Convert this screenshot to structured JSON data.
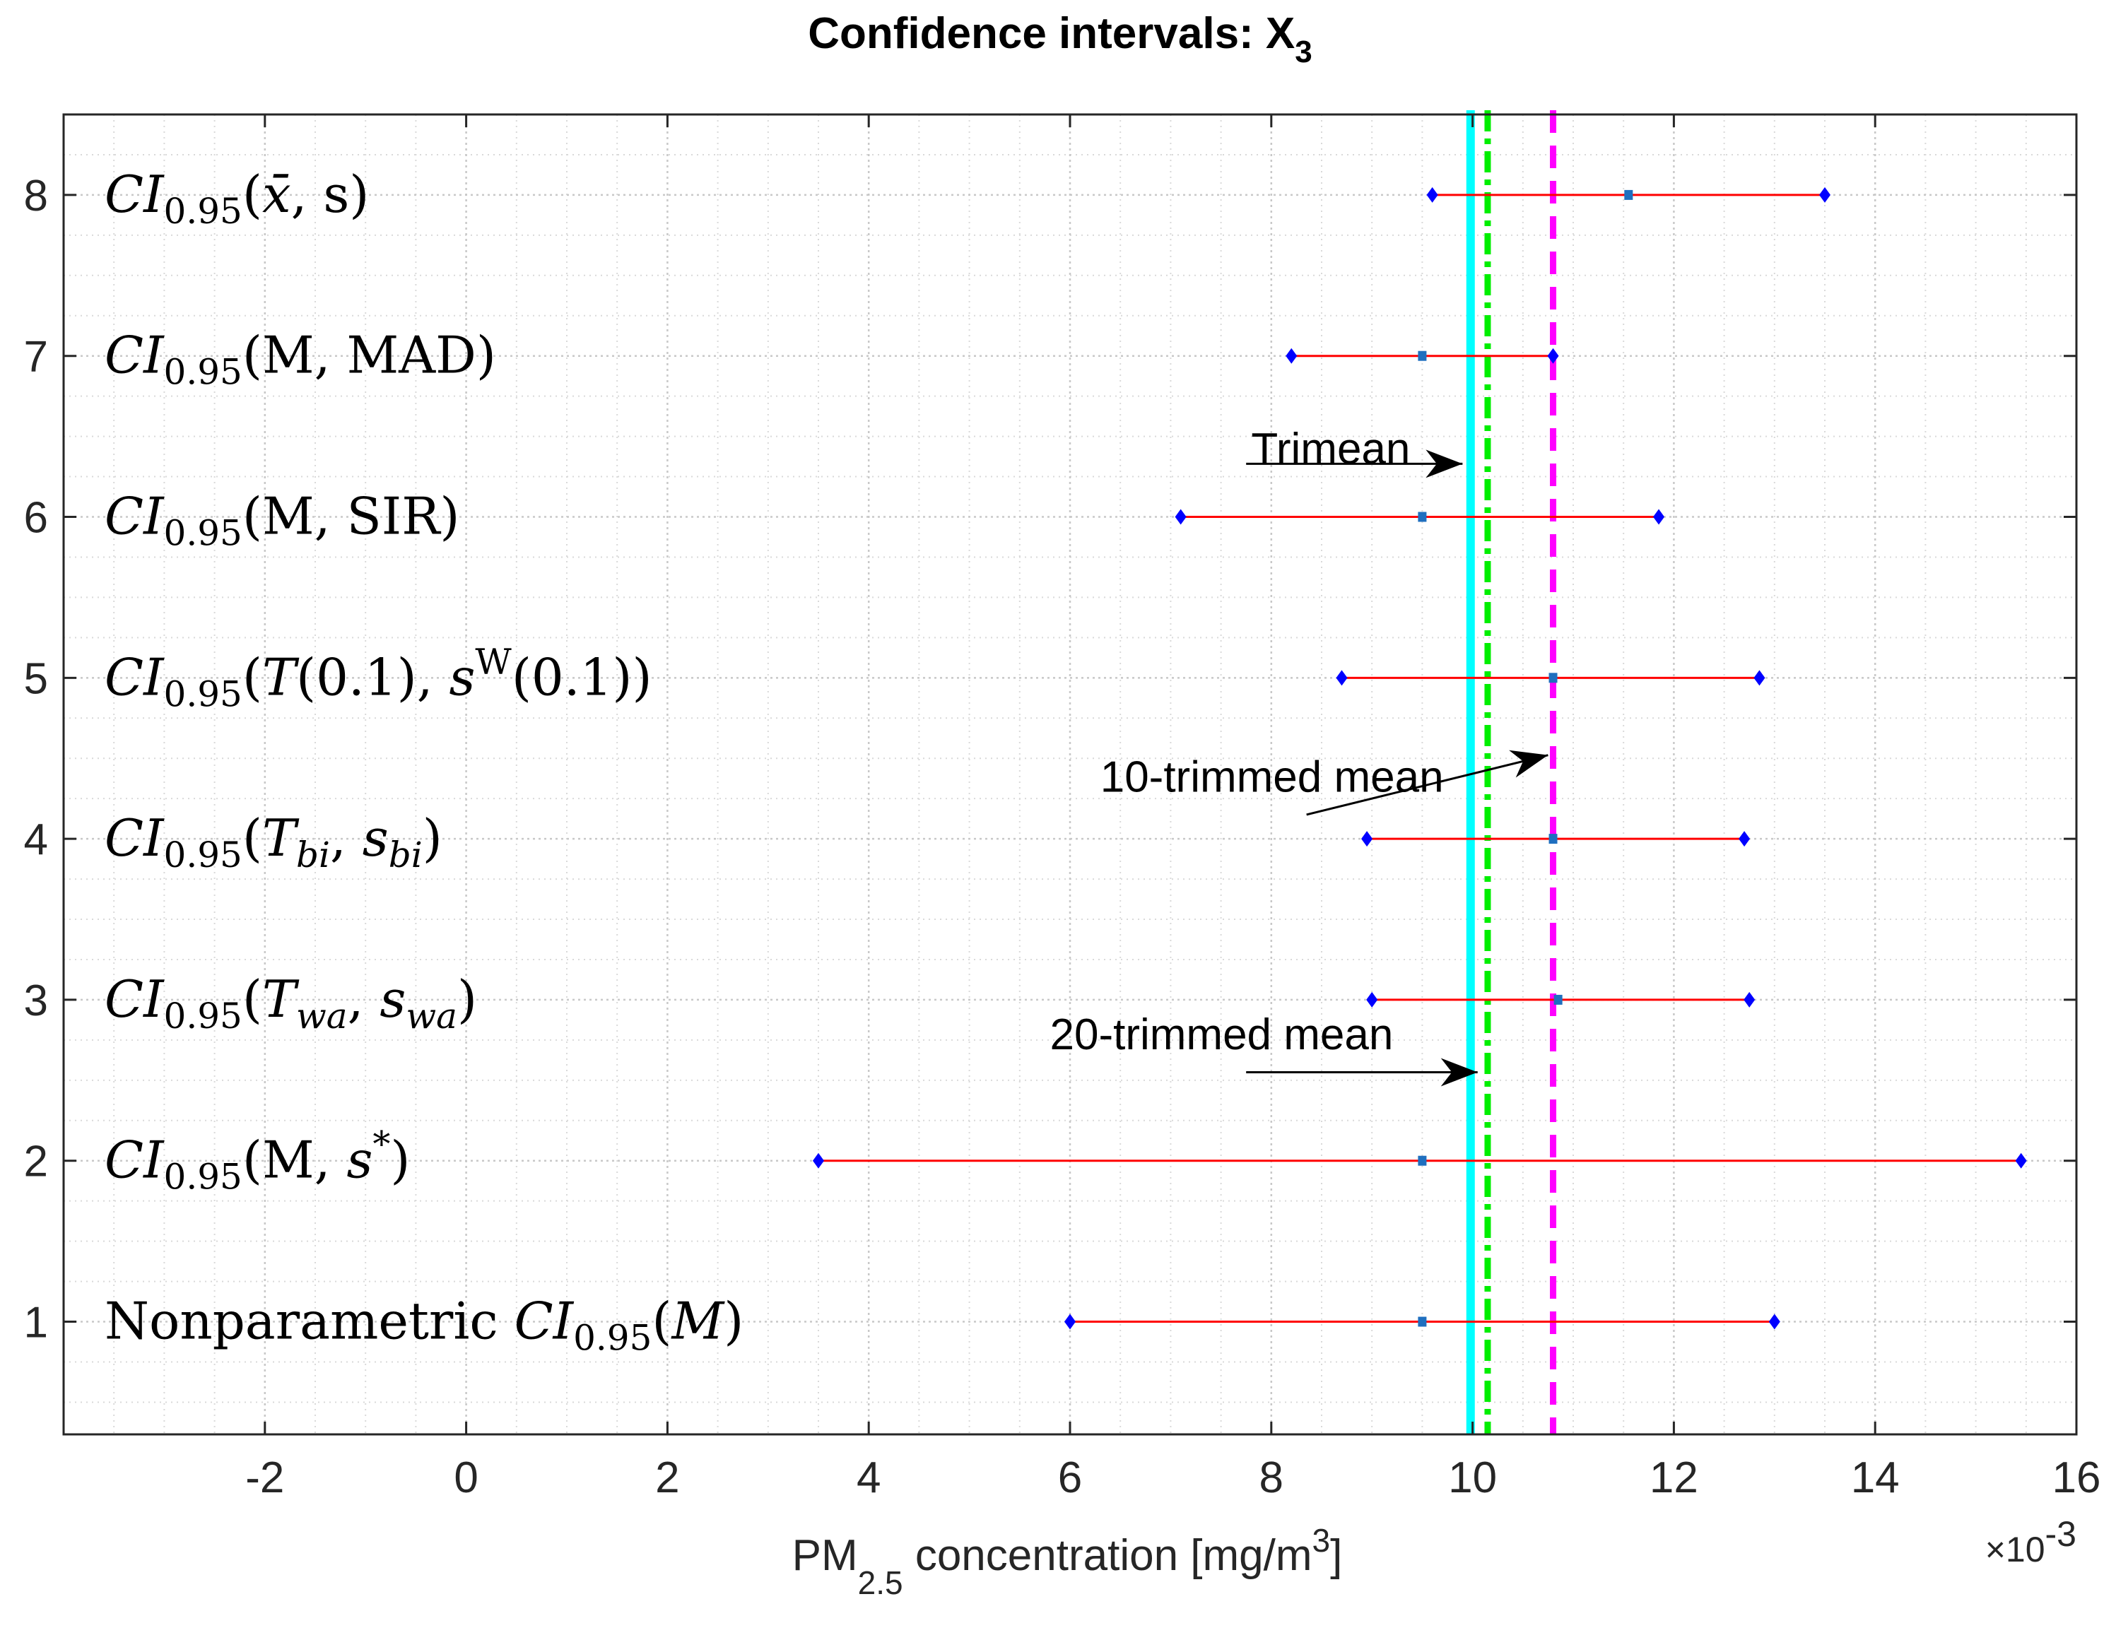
{
  "chart_data": {
    "type": "interval",
    "title": "Confidence intervals: X",
    "title_sub": "3",
    "xlabel": {
      "prefix": "PM",
      "sub": "2.5",
      "middle": " concentration [mg/m",
      "sup": "3",
      "suffix": "]"
    },
    "x_exponent_label": {
      "base": "×10",
      "exp": "-3"
    },
    "xlim": [
      -4,
      16
    ],
    "ylim": [
      0.3,
      8.5
    ],
    "xticks": [
      {
        "value": -2,
        "label": "-2"
      },
      {
        "value": 0,
        "label": "0"
      },
      {
        "value": 2,
        "label": "2"
      },
      {
        "value": 4,
        "label": "4"
      },
      {
        "value": 6,
        "label": "6"
      },
      {
        "value": 8,
        "label": "8"
      },
      {
        "value": 10,
        "label": "10"
      },
      {
        "value": 12,
        "label": "12"
      },
      {
        "value": 14,
        "label": "14"
      },
      {
        "value": 16,
        "label": "16"
      }
    ],
    "yticks": [
      {
        "value": 1,
        "label": "1"
      },
      {
        "value": 2,
        "label": "2"
      },
      {
        "value": 3,
        "label": "3"
      },
      {
        "value": 4,
        "label": "4"
      },
      {
        "value": 5,
        "label": "5"
      },
      {
        "value": 6,
        "label": "6"
      },
      {
        "value": 7,
        "label": "7"
      },
      {
        "value": 8,
        "label": "8"
      }
    ],
    "grid": true,
    "minor_grid": true,
    "intervals": [
      {
        "y": 8,
        "label": [
          {
            "t": "CI",
            "s": "i"
          },
          {
            "t": "0.95",
            "s": "sub"
          },
          {
            "t": "(",
            "s": "n"
          },
          {
            "t": "x̄",
            "s": "i"
          },
          {
            "t": ", s)",
            "s": "n"
          }
        ],
        "lower": 9.6,
        "center": 11.55,
        "upper": 13.5
      },
      {
        "y": 7,
        "label": [
          {
            "t": "CI",
            "s": "i"
          },
          {
            "t": "0.95",
            "s": "sub"
          },
          {
            "t": "(M, MAD)",
            "s": "n"
          }
        ],
        "lower": 8.2,
        "center": 9.5,
        "upper": 10.8
      },
      {
        "y": 6,
        "label": [
          {
            "t": "CI",
            "s": "i"
          },
          {
            "t": "0.95",
            "s": "sub"
          },
          {
            "t": "(M, SIR)",
            "s": "n"
          }
        ],
        "lower": 7.1,
        "center": 9.5,
        "upper": 11.85
      },
      {
        "y": 5,
        "label": [
          {
            "t": "CI",
            "s": "i"
          },
          {
            "t": "0.95",
            "s": "sub"
          },
          {
            "t": "(",
            "s": "n"
          },
          {
            "t": "T",
            "s": "i"
          },
          {
            "t": "(0.1), ",
            "s": "n"
          },
          {
            "t": "s",
            "s": "i"
          },
          {
            "t": "W",
            "s": "sup"
          },
          {
            "t": "(0.1))",
            "s": "n"
          }
        ],
        "lower": 8.7,
        "center": 10.8,
        "upper": 12.85
      },
      {
        "y": 4,
        "label": [
          {
            "t": "CI",
            "s": "i"
          },
          {
            "t": "0.95",
            "s": "sub"
          },
          {
            "t": "(",
            "s": "n"
          },
          {
            "t": "T",
            "s": "i"
          },
          {
            "t": "bi",
            "s": "subi"
          },
          {
            "t": ", ",
            "s": "n"
          },
          {
            "t": "s",
            "s": "i"
          },
          {
            "t": "bi",
            "s": "subi"
          },
          {
            "t": ")",
            "s": "n"
          }
        ],
        "lower": 8.95,
        "center": 10.8,
        "upper": 12.7
      },
      {
        "y": 3,
        "label": [
          {
            "t": "CI",
            "s": "i"
          },
          {
            "t": "0.95",
            "s": "sub"
          },
          {
            "t": "(",
            "s": "n"
          },
          {
            "t": "T",
            "s": "i"
          },
          {
            "t": "wa",
            "s": "subi"
          },
          {
            "t": ", ",
            "s": "n"
          },
          {
            "t": "s",
            "s": "i"
          },
          {
            "t": "wa",
            "s": "subi"
          },
          {
            "t": ")",
            "s": "n"
          }
        ],
        "lower": 9.0,
        "center": 10.85,
        "upper": 12.75
      },
      {
        "y": 2,
        "label": [
          {
            "t": "CI",
            "s": "i"
          },
          {
            "t": "0.95",
            "s": "sub"
          },
          {
            "t": "(M, ",
            "s": "n"
          },
          {
            "t": "s",
            "s": "i"
          },
          {
            "t": "*",
            "s": "sup"
          },
          {
            "t": ")",
            "s": "n"
          }
        ],
        "lower": 3.5,
        "center": 9.5,
        "upper": 15.45
      },
      {
        "y": 1,
        "label": [
          {
            "t": "Nonparametric ",
            "s": "n"
          },
          {
            "t": "CI",
            "s": "i"
          },
          {
            "t": "0.95",
            "s": "sub"
          },
          {
            "t": "(",
            "s": "n"
          },
          {
            "t": "M",
            "s": "i"
          },
          {
            "t": ")",
            "s": "n"
          }
        ],
        "lower": 6.0,
        "center": 9.5,
        "upper": 13.0
      }
    ],
    "reference_lines": [
      {
        "name": "trimean",
        "x": 9.98,
        "color": "#00ffff",
        "style": "solid"
      },
      {
        "name": "20-trimmed-mean",
        "x": 10.15,
        "color": "#00ee00",
        "style": "dashdot"
      },
      {
        "name": "10-trimmed-mean",
        "x": 10.8,
        "color": "#ff00ff",
        "style": "dashed"
      }
    ],
    "annotations": [
      {
        "name": "trimean",
        "text": "Trimean",
        "text_x": 7.8,
        "text_y": 6.42,
        "from": [
          7.75,
          6.33
        ],
        "to": [
          9.9,
          6.33
        ]
      },
      {
        "name": "10-trimmed-mean",
        "text": "10-trimmed mean",
        "text_x": 6.3,
        "text_y": 4.38,
        "from": [
          8.35,
          4.15
        ],
        "to": [
          10.75,
          4.52
        ]
      },
      {
        "name": "20-trimmed-mean",
        "text": "20-trimmed mean",
        "text_x": 5.8,
        "text_y": 2.78,
        "from": [
          7.75,
          2.55
        ],
        "to": [
          10.05,
          2.55
        ]
      }
    ],
    "colors": {
      "interval_line": "#ff0000",
      "endpoint": "#0000ff",
      "center_marker": "#1f6fbf",
      "axis": "#262626",
      "grid": "#d9d9d9",
      "arrow": "#000000"
    }
  }
}
